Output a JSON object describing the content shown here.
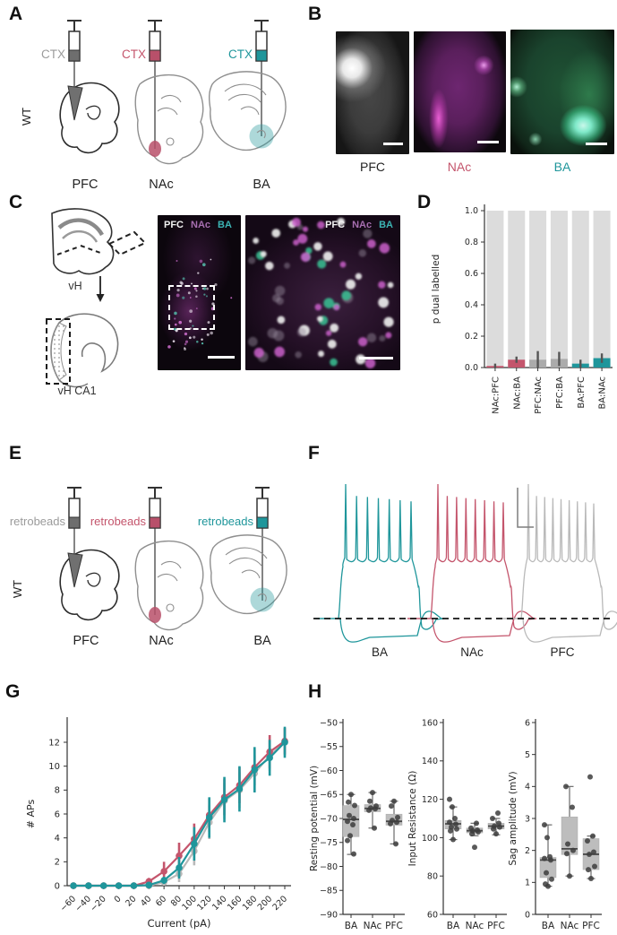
{
  "palette": {
    "gray": "#9b9b9b",
    "crimson": "#c4556c",
    "teal": "#1f969b",
    "gray_bar": "#ababab",
    "bg_bar": "#dcdcdc",
    "box_fill": "#bdbdbd",
    "point": "#3d3d3d",
    "axis": "#2b2b2b",
    "trace_gray": "#b9b9b9",
    "magenta_image": "#a76fb0",
    "green_image": "#3bbf8f"
  },
  "panels": {
    "a": {
      "letter": "A",
      "side_label": "WT",
      "injections": [
        {
          "reagent": "CTX",
          "target": "PFC",
          "color": "#9b9b9b",
          "fill": "#6e6e6e"
        },
        {
          "reagent": "CTX",
          "target": "NAc",
          "color": "#c4556c",
          "fill": "#b8506a"
        },
        {
          "reagent": "CTX",
          "target": "BA",
          "color": "#1f969b",
          "fill": "#1f969b"
        }
      ]
    },
    "b": {
      "letter": "B",
      "images": [
        {
          "label": "PFC",
          "channel": "grayscale"
        },
        {
          "label": "NAc",
          "channel": "magenta"
        },
        {
          "label": "BA",
          "channel": "green"
        }
      ]
    },
    "c": {
      "letter": "C",
      "region_label": "vH",
      "subregion_label": "vH CA1",
      "legend": [
        {
          "label": "PFC",
          "color": "#f2f2f2"
        },
        {
          "label": "NAc",
          "color": "#a76fb0"
        },
        {
          "label": "BA",
          "color": "#3cb4b4"
        }
      ]
    },
    "d": {
      "letter": "D"
    },
    "e": {
      "letter": "E",
      "side_label": "WT",
      "injections": [
        {
          "reagent": "retrobeads",
          "target": "PFC",
          "color": "#9b9b9b",
          "fill": "#6e6e6e"
        },
        {
          "reagent": "retrobeads",
          "target": "NAc",
          "color": "#c4556c",
          "fill": "#b8506a"
        },
        {
          "reagent": "retrobeads",
          "target": "BA",
          "color": "#1f969b",
          "fill": "#1f969b"
        }
      ]
    },
    "f": {
      "letter": "F",
      "traces": [
        {
          "label": "BA",
          "color": "#1f969b",
          "spikes": 7
        },
        {
          "label": "NAc",
          "color": "#c4556c",
          "spikes": 8
        },
        {
          "label": "PFC",
          "color": "#b9b9b9",
          "spikes": 9
        }
      ]
    },
    "g": {
      "letter": "G"
    },
    "h": {
      "letter": "H"
    }
  },
  "chart_data": [
    {
      "id": "dual_label",
      "type": "bar",
      "ylabel": "p dual labelled",
      "ylim": [
        0,
        1.0
      ],
      "yticks": [
        0.0,
        0.2,
        0.4,
        0.6,
        0.8,
        1.0
      ],
      "categories": [
        "NAc:PFC",
        "NAc:BA",
        "PFC:NAc",
        "PFC:BA",
        "BA:PFC",
        "BA:NAc"
      ],
      "values": [
        0.01,
        0.05,
        0.05,
        0.055,
        0.025,
        0.06
      ],
      "errors": [
        0.015,
        0.02,
        0.055,
        0.045,
        0.025,
        0.03
      ],
      "bar_colors": [
        "#c4556c",
        "#c4556c",
        "#ababab",
        "#ababab",
        "#1f969b",
        "#1f969b"
      ],
      "background_value": 1.0,
      "grid": false,
      "legend": "none"
    },
    {
      "id": "fi_curve",
      "type": "line",
      "xlabel": "Current (pA)",
      "ylabel": "# APs",
      "x": [
        -60,
        -40,
        -20,
        0,
        20,
        40,
        60,
        80,
        100,
        120,
        140,
        160,
        180,
        200,
        220
      ],
      "yticks": [
        0,
        2,
        4,
        6,
        8,
        10,
        12
      ],
      "xlim": [
        -70,
        230
      ],
      "ylim": [
        0,
        13.5
      ],
      "series": [
        {
          "name": "PFC",
          "color": "#b9b9b9",
          "values": [
            0,
            0,
            0,
            0,
            0,
            0,
            0.3,
            1.0,
            2.9,
            5.3,
            7.1,
            8.0,
            9.4,
            10.9,
            12.0
          ],
          "errors": [
            0,
            0,
            0,
            0,
            0,
            0.1,
            0.3,
            0.7,
            1.2,
            1.4,
            1.5,
            1.5,
            1.5,
            1.3,
            1.1
          ]
        },
        {
          "name": "NAc",
          "color": "#c4556c",
          "values": [
            0,
            0,
            0,
            0,
            0,
            0.35,
            1.2,
            2.5,
            3.9,
            5.9,
            7.4,
            8.4,
            9.9,
            11.2,
            12.1
          ],
          "errors": [
            0,
            0,
            0,
            0,
            0,
            0.3,
            0.8,
            1.1,
            1.3,
            1.4,
            1.5,
            1.5,
            1.5,
            1.4,
            1.1
          ]
        },
        {
          "name": "BA",
          "color": "#1f969b",
          "values": [
            0,
            0,
            0,
            0,
            0,
            0.05,
            0.45,
            1.5,
            3.5,
            5.7,
            7.2,
            8.1,
            9.7,
            10.7,
            12.0
          ],
          "errors": [
            0,
            0,
            0,
            0,
            0,
            0.05,
            0.3,
            0.9,
            1.4,
            1.7,
            1.9,
            1.9,
            1.9,
            1.5,
            1.3
          ]
        }
      ],
      "grid": false,
      "legend": "none"
    },
    {
      "id": "resting_potential",
      "type": "box",
      "ylabel": "Resting potential (mV)",
      "ylim": [
        -90,
        -50
      ],
      "yticks": [
        -90,
        -85,
        -80,
        -75,
        -70,
        -65,
        -60,
        -55,
        -50
      ],
      "categories": [
        "BA",
        "NAc",
        "PFC"
      ],
      "boxes": [
        {
          "whisker_low": -77.5,
          "q1": -73.8,
          "median": -70.2,
          "q3": -67.3,
          "whisker_high": -65.0,
          "points": [
            -65.0,
            -66.6,
            -67.3,
            -69.4,
            -70.0,
            -70.6,
            -71.3,
            -73.6,
            -74.6,
            -77.4
          ]
        },
        {
          "whisker_low": -72.0,
          "q1": -68.6,
          "median": -67.9,
          "q3": -67.1,
          "whisker_high": -64.6,
          "points": [
            -64.6,
            -66.4,
            -67.4,
            -67.8,
            -68.0,
            -68.3,
            -72.0
          ]
        },
        {
          "whisker_low": -75.3,
          "q1": -71.4,
          "median": -70.6,
          "q3": -69.1,
          "whisker_high": -66.4,
          "points": [
            -66.4,
            -67.4,
            -69.8,
            -70.4,
            -70.8,
            -71.1,
            -75.3
          ]
        }
      ]
    },
    {
      "id": "input_resistance",
      "type": "box",
      "ylabel": "Input Resistance (Ω)",
      "ylim": [
        60,
        160
      ],
      "yticks": [
        60,
        80,
        100,
        120,
        140,
        160
      ],
      "categories": [
        "BA",
        "NAc",
        "PFC"
      ],
      "boxes": [
        {
          "whisker_low": 99,
          "q1": 104.5,
          "median": 107.2,
          "q3": 109,
          "whisker_high": 116,
          "points": [
            99,
            103.5,
            104.5,
            105.5,
            107,
            108,
            110,
            116,
            120
          ]
        },
        {
          "whisker_low": 101,
          "q1": 102.5,
          "median": 103.6,
          "q3": 105,
          "whisker_high": 107.5,
          "points": [
            95,
            102,
            103,
            103.5,
            104,
            105,
            107.5
          ]
        },
        {
          "whisker_low": 101.5,
          "q1": 104.5,
          "median": 106,
          "q3": 107.5,
          "whisker_high": 110,
          "points": [
            102,
            104.5,
            105.5,
            106,
            107.5,
            110,
            112.8
          ]
        }
      ]
    },
    {
      "id": "sag_amplitude",
      "type": "box",
      "ylabel": "Sag amplitude (mV)",
      "ylim": [
        0,
        6
      ],
      "yticks": [
        0,
        1,
        2,
        3,
        4,
        5,
        6
      ],
      "categories": [
        "BA",
        "NAc",
        "PFC"
      ],
      "boxes": [
        {
          "whisker_low": 0.88,
          "q1": 1.15,
          "median": 1.7,
          "q3": 1.78,
          "whisker_high": 2.8,
          "points": [
            0.88,
            0.95,
            1.1,
            1.3,
            1.7,
            1.75,
            1.8,
            2.4,
            2.8
          ]
        },
        {
          "whisker_low": 1.2,
          "q1": 1.87,
          "median": 2.05,
          "q3": 3.05,
          "whisker_high": 4.0,
          "points": [
            1.2,
            1.9,
            2.0,
            2.2,
            3.35,
            4.0
          ]
        },
        {
          "whisker_low": 1.12,
          "q1": 1.4,
          "median": 1.88,
          "q3": 2.37,
          "whisker_high": 2.45,
          "points": [
            1.12,
            1.4,
            1.5,
            1.88,
            1.95,
            2.3,
            2.45,
            4.3
          ]
        }
      ]
    }
  ]
}
